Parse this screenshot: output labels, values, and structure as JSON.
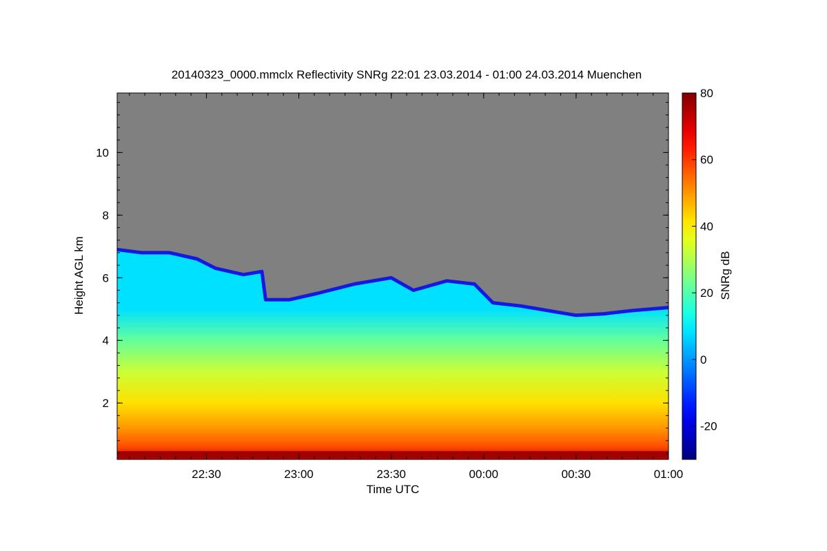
{
  "chart_data": {
    "type": "heatmap",
    "title": "20140323_0000.mmclx Reflectivity SNRg   22:01 23.03.2014 - 01:00 24.03.2014 Muenchen",
    "xlabel": "Time UTC",
    "ylabel": "Height AGL km",
    "x_range_hours": [
      22.017,
      25.0
    ],
    "y_range_km": [
      0.2,
      11.9
    ],
    "x_ticks": [
      {
        "hours": 22.5,
        "label": "22:30"
      },
      {
        "hours": 23.0,
        "label": "23:00"
      },
      {
        "hours": 23.5,
        "label": "23:30"
      },
      {
        "hours": 24.0,
        "label": "00:00"
      },
      {
        "hours": 24.5,
        "label": "00:30"
      },
      {
        "hours": 25.0,
        "label": "01:00"
      }
    ],
    "y_ticks": [
      {
        "value": 2,
        "label": "2"
      },
      {
        "value": 4,
        "label": "4"
      },
      {
        "value": 6,
        "label": "6"
      },
      {
        "value": 8,
        "label": "8"
      },
      {
        "value": 10,
        "label": "10"
      }
    ],
    "colorbar": {
      "label": "SNRg dB",
      "range": [
        -30,
        80
      ],
      "ticks": [
        {
          "value": -20,
          "label": "-20"
        },
        {
          "value": 0,
          "label": "0"
        },
        {
          "value": 20,
          "label": "20"
        },
        {
          "value": 40,
          "label": "40"
        },
        {
          "value": 60,
          "label": "60"
        },
        {
          "value": 80,
          "label": "80"
        }
      ]
    },
    "background_color": "#808080",
    "echo_top_km": [
      {
        "hours": 22.017,
        "top": 6.9
      },
      {
        "hours": 22.15,
        "top": 6.8
      },
      {
        "hours": 22.3,
        "top": 6.8
      },
      {
        "hours": 22.45,
        "top": 6.6
      },
      {
        "hours": 22.55,
        "top": 6.3
      },
      {
        "hours": 22.7,
        "top": 6.1
      },
      {
        "hours": 22.8,
        "top": 6.2
      },
      {
        "hours": 22.82,
        "top": 5.3
      },
      {
        "hours": 22.95,
        "top": 5.3
      },
      {
        "hours": 23.1,
        "top": 5.5
      },
      {
        "hours": 23.3,
        "top": 5.8
      },
      {
        "hours": 23.5,
        "top": 6.0
      },
      {
        "hours": 23.62,
        "top": 5.6
      },
      {
        "hours": 23.8,
        "top": 5.9
      },
      {
        "hours": 23.95,
        "top": 5.8
      },
      {
        "hours": 24.05,
        "top": 5.2
      },
      {
        "hours": 24.2,
        "top": 5.1
      },
      {
        "hours": 24.35,
        "top": 4.95
      },
      {
        "hours": 24.5,
        "top": 4.8
      },
      {
        "hours": 24.65,
        "top": 4.85
      },
      {
        "hours": 24.8,
        "top": 4.95
      },
      {
        "hours": 25.0,
        "top": 5.05
      }
    ],
    "core_snr_db": [
      {
        "height_km": 0.25,
        "snr": 72
      },
      {
        "height_km": 0.6,
        "snr": 58
      },
      {
        "height_km": 1.2,
        "snr": 50
      },
      {
        "height_km": 2.0,
        "snr": 42
      },
      {
        "height_km": 3.0,
        "snr": 33
      },
      {
        "height_km": 4.0,
        "snr": 22
      },
      {
        "height_km": 5.0,
        "snr": 8
      }
    ]
  }
}
